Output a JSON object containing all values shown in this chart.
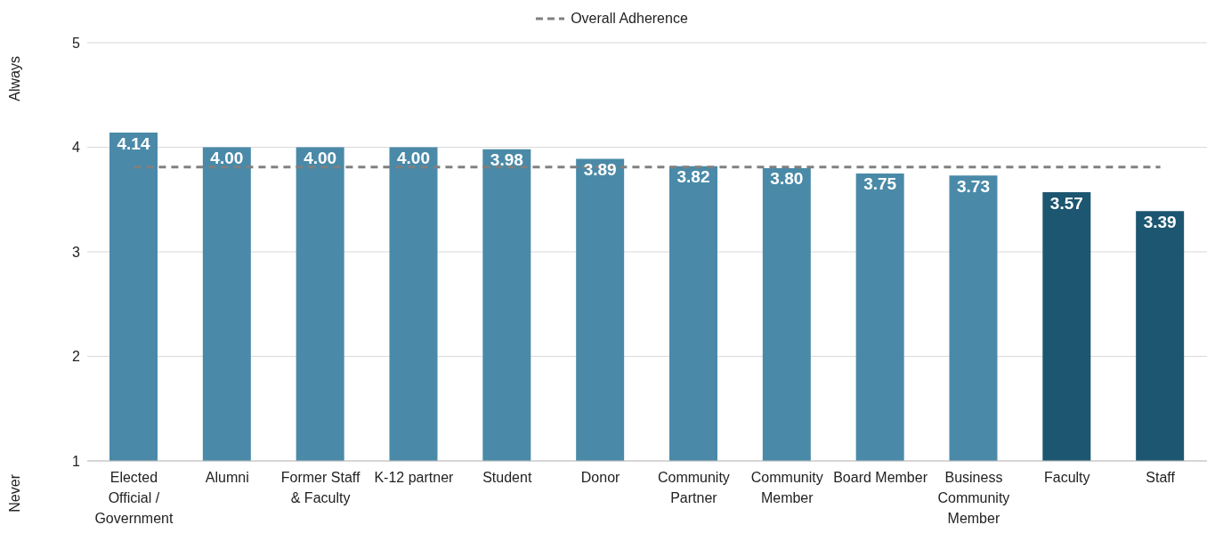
{
  "chart_data": {
    "type": "bar",
    "categories": [
      "Elected Official / Government",
      "Alumni",
      "Former Staff & Faculty",
      "K-12 partner",
      "Student",
      "Donor",
      "Community Partner",
      "Community Member",
      "Board Member",
      "Business Community Member",
      "Faculty",
      "Staff"
    ],
    "values": [
      4.14,
      4.0,
      4.0,
      4.0,
      3.98,
      3.89,
      3.82,
      3.8,
      3.75,
      3.73,
      3.57,
      3.39
    ],
    "colors": [
      "#4a8aa8",
      "#4a8aa8",
      "#4a8aa8",
      "#4a8aa8",
      "#4a8aa8",
      "#4a8aa8",
      "#4a8aa8",
      "#4a8aa8",
      "#4a8aa8",
      "#4a8aa8",
      "#1d5670",
      "#1d5670"
    ],
    "value_labels": [
      "4.14",
      "4.00",
      "4.00",
      "4.00",
      "3.98",
      "3.89",
      "3.82",
      "3.80",
      "3.75",
      "3.73",
      "3.57",
      "3.39"
    ],
    "ylim": [
      1,
      5
    ],
    "yticks": [
      1,
      2,
      3,
      4,
      5
    ],
    "grid": "y",
    "legend": "top",
    "ref_lines": [
      {
        "axis": "y",
        "value": 3.81,
        "label": "Overall Adherence",
        "color": "#808080",
        "line_style": "dashed"
      }
    ],
    "annotations": [
      "Always",
      "Never"
    ]
  }
}
